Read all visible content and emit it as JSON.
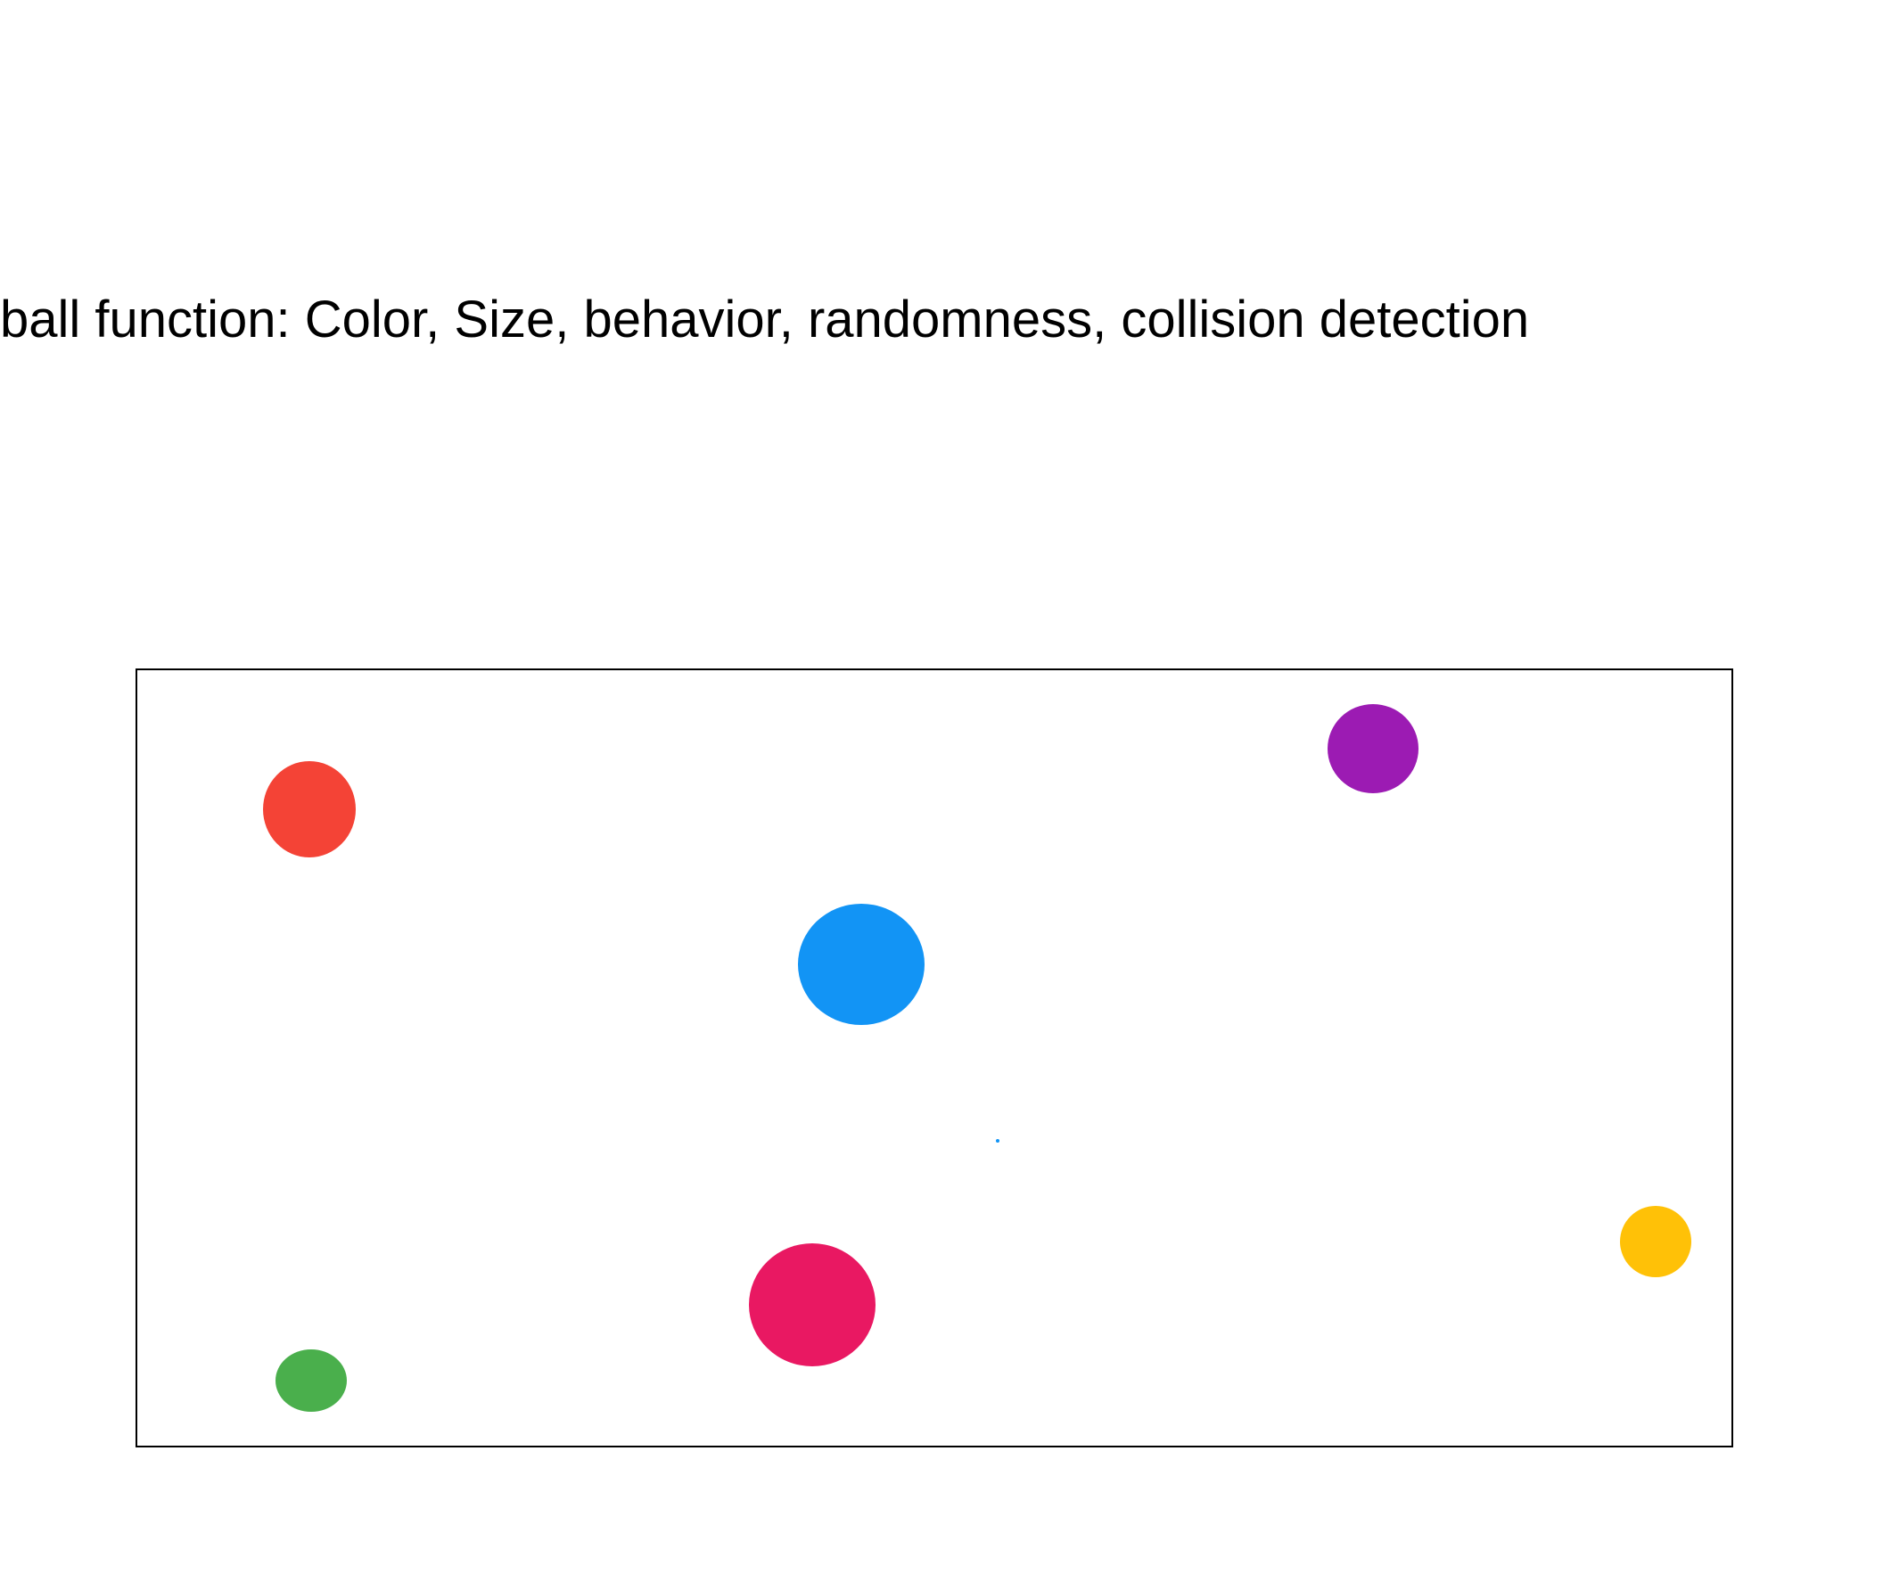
{
  "heading": "ball function: Color, Size, behavior, randomness, collision detection",
  "balls": [
    {
      "name": "red",
      "color": "#f44336"
    },
    {
      "name": "purple",
      "color": "#9c1bb3"
    },
    {
      "name": "blue",
      "color": "#1294f5"
    },
    {
      "name": "tiny-blue",
      "color": "#1294f5"
    },
    {
      "name": "yellow",
      "color": "#ffc107"
    },
    {
      "name": "pink",
      "color": "#e91862"
    },
    {
      "name": "green",
      "color": "#4aaf4c"
    }
  ]
}
